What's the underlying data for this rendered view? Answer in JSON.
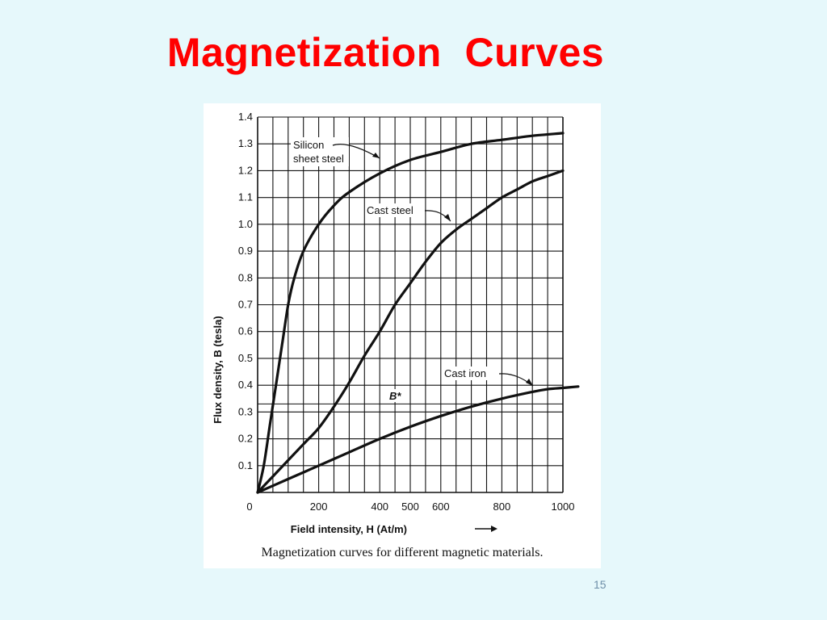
{
  "slide": {
    "title": "Magnetization  Curves",
    "page_number": "15"
  },
  "figure": {
    "caption": "Magnetization curves for different magnetic materials."
  },
  "chart_data": {
    "type": "line",
    "xlabel": "Field intensity, H (At/m)",
    "ylabel": "Flux density, B (tesla)",
    "xlim": [
      0,
      1000
    ],
    "ylim": [
      0,
      1.4
    ],
    "x_ticks": [
      0,
      200,
      400,
      500,
      600,
      800,
      1000
    ],
    "x_tick_labels": [
      "0",
      "200",
      "400",
      "500",
      "600",
      "800",
      "1000"
    ],
    "y_ticks": [
      0.1,
      0.2,
      0.3,
      0.4,
      0.5,
      0.6,
      0.7,
      0.8,
      0.9,
      1.0,
      1.1,
      1.2,
      1.3,
      1.4
    ],
    "y_tick_labels": [
      "0.1",
      "0.2",
      "0.3",
      "0.4",
      "0.5",
      "0.6",
      "0.7",
      "0.8",
      "0.9",
      "1.0",
      "1.1",
      "1.2",
      "1.3",
      "1.4"
    ],
    "grid": true,
    "series": [
      {
        "name": "Silicon sheet steel",
        "x": [
          0,
          20,
          40,
          60,
          80,
          100,
          120,
          150,
          200,
          250,
          300,
          400,
          500,
          600,
          700,
          800,
          900,
          1000
        ],
        "y": [
          0,
          0.1,
          0.25,
          0.4,
          0.55,
          0.7,
          0.8,
          0.9,
          1.0,
          1.07,
          1.12,
          1.19,
          1.24,
          1.27,
          1.3,
          1.315,
          1.33,
          1.34
        ]
      },
      {
        "name": "Cast steel",
        "x": [
          0,
          50,
          100,
          150,
          200,
          250,
          300,
          350,
          400,
          450,
          500,
          550,
          600,
          650,
          700,
          750,
          800,
          850,
          900,
          950,
          1000
        ],
        "y": [
          0,
          0.06,
          0.12,
          0.18,
          0.24,
          0.32,
          0.41,
          0.51,
          0.6,
          0.7,
          0.78,
          0.86,
          0.93,
          0.98,
          1.02,
          1.06,
          1.1,
          1.13,
          1.16,
          1.18,
          1.2
        ]
      },
      {
        "name": "Cast iron",
        "x": [
          0,
          100,
          200,
          300,
          400,
          500,
          600,
          700,
          800,
          900,
          950,
          1000,
          1050
        ],
        "y": [
          0,
          0.05,
          0.1,
          0.15,
          0.2,
          0.245,
          0.285,
          0.32,
          0.35,
          0.375,
          0.385,
          0.39,
          0.395
        ]
      }
    ],
    "annotations": {
      "silicon_line1": "Silicon",
      "silicon_line2": "sheet steel",
      "cast_steel": "Cast steel",
      "cast_iron": "Cast iron",
      "b_star": "B*",
      "b_star_value": 0.33
    }
  }
}
